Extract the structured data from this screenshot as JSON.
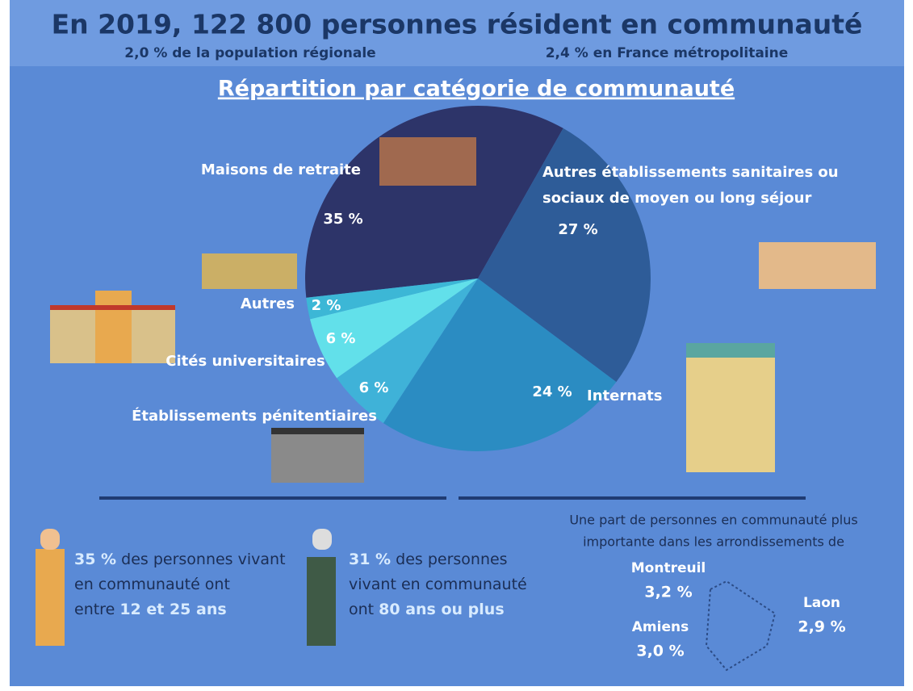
{
  "header": {
    "title": "En 2019, 122 800 personnes résident en communauté",
    "subtitle_left": "2,0 % de la population régionale",
    "subtitle_right": "2,4 % en France métropolitaine"
  },
  "chart_data": {
    "type": "pie",
    "title": "Répartition par catégorie de communauté",
    "categories": [
      "Maisons de retraite",
      "Autres établissements sanitaires ou sociaux de moyen ou long séjour",
      "Internats",
      "Établissements pénitentiaires",
      "Cités universitaires",
      "Autres"
    ],
    "values": [
      35,
      27,
      24,
      6,
      6,
      2
    ],
    "value_labels": [
      "35 %",
      "27 %",
      "24 %",
      "6 %",
      "6 %",
      "2 %"
    ],
    "colors": [
      "#2d3469",
      "#2e5c98",
      "#2b8cc2",
      "#3fb2d8",
      "#62e0ea",
      "#3cb7d6"
    ]
  },
  "stats": [
    {
      "lines": [
        [
          {
            "text": "35 %",
            "highlight": true
          },
          {
            "text": " des personnes vivant",
            "highlight": false
          }
        ],
        [
          {
            "text": "en communauté ont",
            "highlight": false
          }
        ],
        [
          {
            "text": "entre ",
            "highlight": false
          },
          {
            "text": "12 et 25 ans",
            "highlight": true
          }
        ]
      ]
    },
    {
      "lines": [
        [
          {
            "text": "31 %",
            "highlight": true
          },
          {
            "text": " des personnes",
            "highlight": false
          }
        ],
        [
          {
            "text": "vivant en communauté",
            "highlight": false
          }
        ],
        [
          {
            "text": "ont ",
            "highlight": false
          },
          {
            "text": "80 ans ou plus",
            "highlight": true
          }
        ]
      ]
    }
  ],
  "map": {
    "note_lines": [
      "Une part de personnes en communauté plus",
      "importante dans les arrondissements de"
    ],
    "places": [
      {
        "name": "Montreuil",
        "value": "3,2 %"
      },
      {
        "name": "Laon",
        "value": "2,9 %"
      },
      {
        "name": "Amiens",
        "value": "3,0 %"
      }
    ]
  }
}
